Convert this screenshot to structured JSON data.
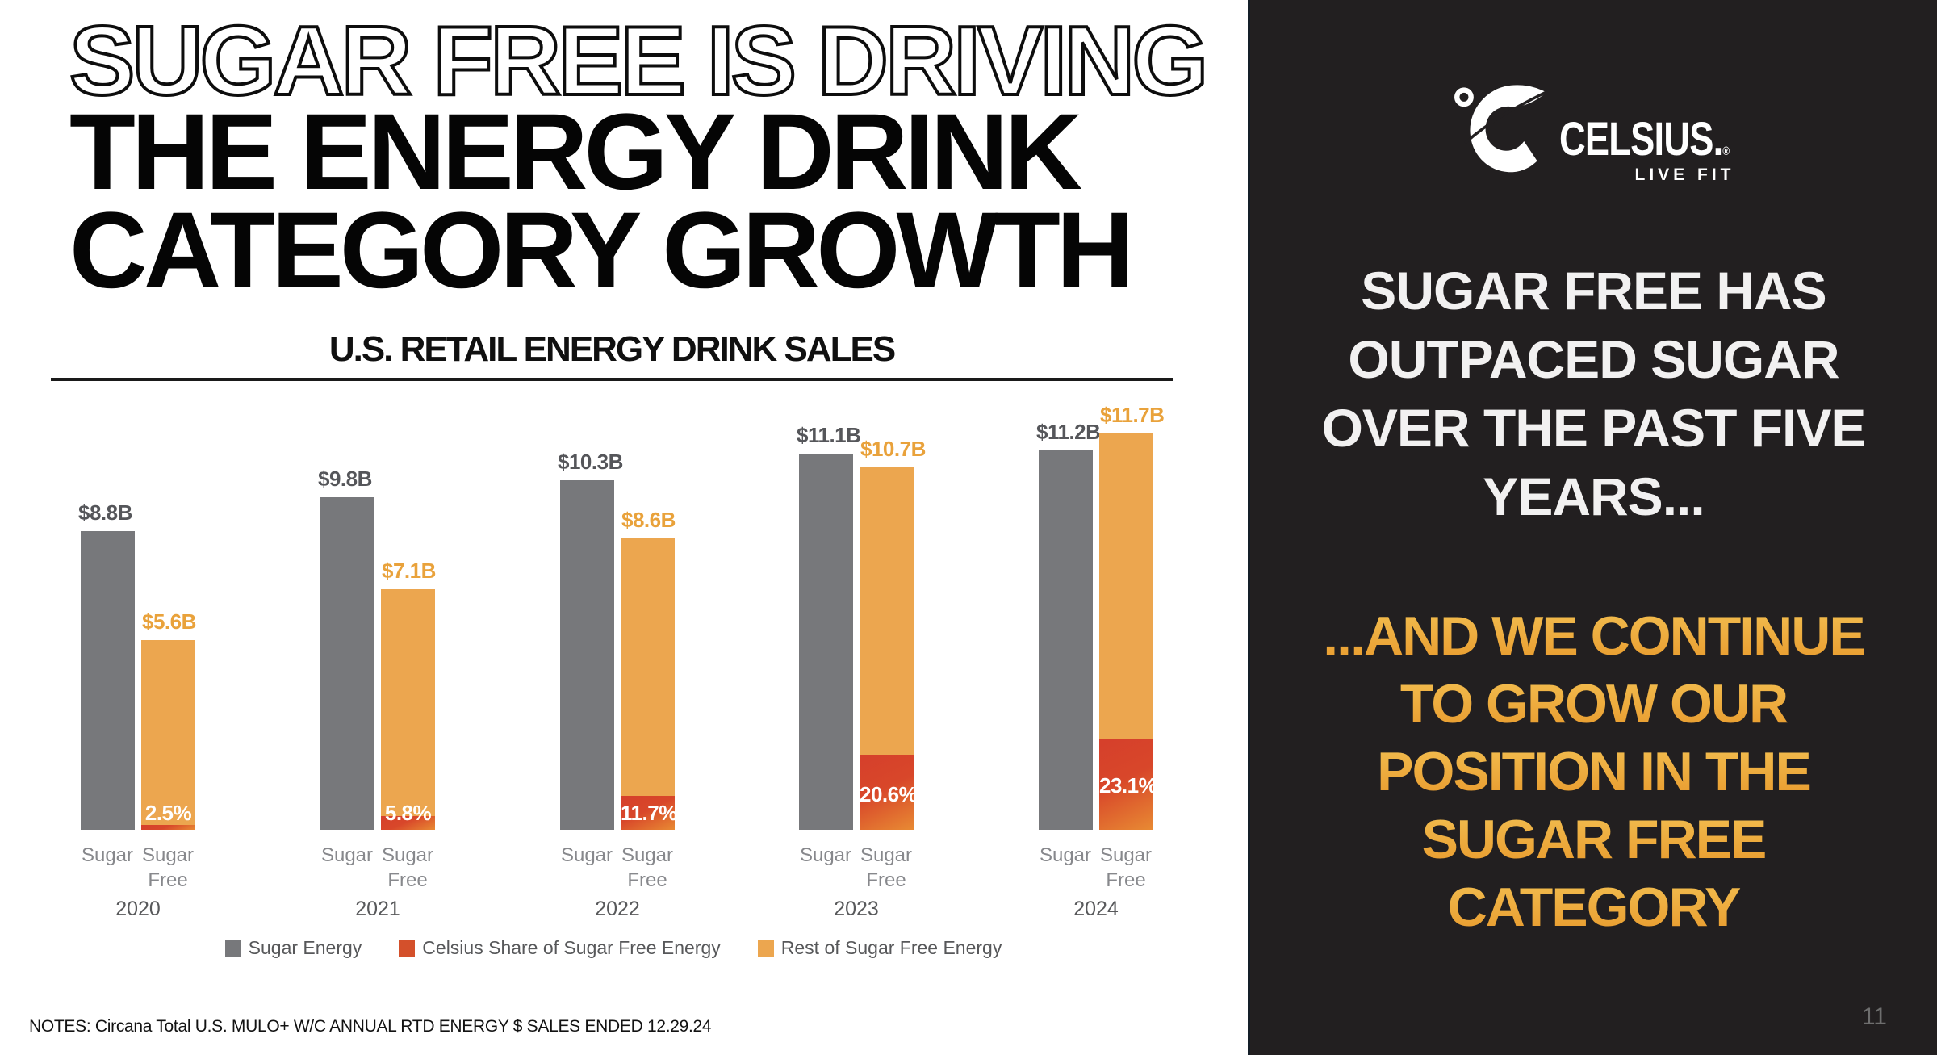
{
  "slide": {
    "title": {
      "line1_outline": "SUGAR FREE IS DRIVING",
      "line2": "THE ENERGY DRINK",
      "line3": "CATEGORY GROWTH"
    },
    "notes": "NOTES: Circana Total U.S. MULO+ W/C ANNUAL RTD ENERGY $ SALES ENDED 12.29.24"
  },
  "chart_data": {
    "type": "bar",
    "title": "U.S. RETAIL ENERGY DRINK SALES",
    "unit": "USD billions",
    "categories": [
      "2020",
      "2021",
      "2022",
      "2023",
      "2024"
    ],
    "bar_category_labels": {
      "sugar": "Sugar",
      "sugar_free": "Sugar Free"
    },
    "groups": [
      {
        "year": "2020",
        "sugar": 8.8,
        "sugar_label": "$8.8B",
        "sugar_free": 5.6,
        "sugar_free_label": "$5.6B",
        "celsius_share_pct": 2.5,
        "celsius_share_label": "2.5%"
      },
      {
        "year": "2021",
        "sugar": 9.8,
        "sugar_label": "$9.8B",
        "sugar_free": 7.1,
        "sugar_free_label": "$7.1B",
        "celsius_share_pct": 5.8,
        "celsius_share_label": "5.8%"
      },
      {
        "year": "2022",
        "sugar": 10.3,
        "sugar_label": "$10.3B",
        "sugar_free": 8.6,
        "sugar_free_label": "$8.6B",
        "celsius_share_pct": 11.7,
        "celsius_share_label": "11.7%"
      },
      {
        "year": "2023",
        "sugar": 11.1,
        "sugar_label": "$11.1B",
        "sugar_free": 10.7,
        "sugar_free_label": "$10.7B",
        "celsius_share_pct": 20.6,
        "celsius_share_label": "20.6%"
      },
      {
        "year": "2024",
        "sugar": 11.2,
        "sugar_label": "$11.2B",
        "sugar_free": 11.7,
        "sugar_free_label": "$11.7B",
        "celsius_share_pct": 23.1,
        "celsius_share_label": "23.1%"
      }
    ],
    "series": [
      {
        "name": "Sugar Energy",
        "values": [
          8.8,
          9.8,
          10.3,
          11.1,
          11.2
        ]
      },
      {
        "name": "Celsius Share of Sugar Free Energy",
        "pct_of_sugar_free": [
          2.5,
          5.8,
          11.7,
          20.6,
          23.1
        ],
        "values": [
          0.14,
          0.41,
          1.01,
          2.2,
          2.7
        ]
      },
      {
        "name": "Rest of Sugar Free Energy",
        "values": [
          5.46,
          6.69,
          7.59,
          8.5,
          9.0
        ]
      }
    ],
    "legend": [
      {
        "label": "Sugar Energy",
        "color": "#77787B"
      },
      {
        "label": "Celsius Share of Sugar Free Energy",
        "color": "#D4502B"
      },
      {
        "label": "Rest of Sugar Free Energy",
        "color": "#ECA64F"
      }
    ],
    "ylim": [
      0,
      12
    ],
    "grid": false,
    "legend_position": "bottom",
    "colors": {
      "sugar_bar": "#77787B",
      "rest_bar": "#ECA64F",
      "celsius_gradient_top": "#D6402B",
      "celsius_gradient_bottom": "#E88A33",
      "value_label_gray": "#55565A",
      "value_label_orange": "#E9A23B",
      "axis_label": "#87888C",
      "year_label": "#58595B",
      "legend_text": "#57585A"
    }
  },
  "panel": {
    "logo": {
      "mark": "celsius-c-with-degree",
      "wordmark": "CELSIUS.",
      "registered": "®",
      "tagline": "LIVE FIT"
    },
    "statement_top_lines": [
      "SUGAR FREE HAS",
      "OUTPACED SUGAR",
      "OVER THE PAST FIVE",
      "YEARS..."
    ],
    "statement_bottom_lines": [
      "...AND WE CONTINUE",
      "TO GROW OUR",
      "POSITION IN THE",
      "SUGAR FREE",
      "CATEGORY"
    ],
    "page_number": "11",
    "colors": {
      "background": "#221F20",
      "white_text": "#F2F1F1",
      "gold_top": "#F2BE50",
      "gold_bottom": "#E8992C"
    }
  }
}
